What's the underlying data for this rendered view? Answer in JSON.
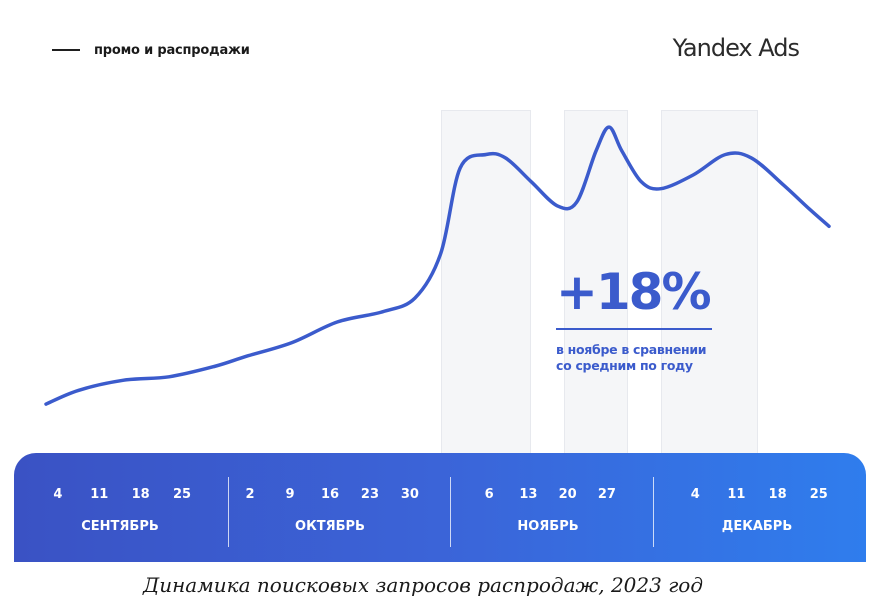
{
  "legend": {
    "label": "промо и распродажи"
  },
  "brand": {
    "text": "Yandex Ads"
  },
  "callout": {
    "value": "+18%",
    "line1": "в ноябре в сравнении",
    "line2": "со средним по году"
  },
  "caption": "Динамика поисковых запросов распродаж, 2023 год",
  "colors": {
    "line": "#3b5bcc",
    "band_start": "#3a52c4",
    "band_end": "#2f7ded",
    "highlight": "#f5f6f8"
  },
  "chart_data": {
    "type": "line",
    "title": "",
    "xlabel": "",
    "ylabel": "",
    "months": [
      {
        "name": "СЕНТЯБРЬ",
        "days": [
          "4",
          "11",
          "18",
          "25"
        ]
      },
      {
        "name": "ОКТЯБРЬ",
        "days": [
          "2",
          "9",
          "16",
          "23",
          "30"
        ]
      },
      {
        "name": "НОЯБРЬ",
        "days": [
          "6",
          "13",
          "20",
          "27"
        ]
      },
      {
        "name": "ДЕКАБРЬ",
        "days": [
          "4",
          "11",
          "18",
          "25"
        ]
      }
    ],
    "x_start": "2023-09-01",
    "x_end": "2023-12-31",
    "ylim": [
      0,
      100
    ],
    "series": [
      {
        "values": [
          {
            "x": "2023-09-01",
            "y": 14
          },
          {
            "x": "2023-09-06",
            "y": 18
          },
          {
            "x": "2023-09-13",
            "y": 21
          },
          {
            "x": "2023-09-20",
            "y": 22
          },
          {
            "x": "2023-09-27",
            "y": 25
          },
          {
            "x": "2023-10-02",
            "y": 28
          },
          {
            "x": "2023-10-09",
            "y": 32
          },
          {
            "x": "2023-10-16",
            "y": 38
          },
          {
            "x": "2023-10-23",
            "y": 41
          },
          {
            "x": "2023-10-28",
            "y": 45
          },
          {
            "x": "2023-11-01",
            "y": 58
          },
          {
            "x": "2023-11-04",
            "y": 83
          },
          {
            "x": "2023-11-08",
            "y": 87
          },
          {
            "x": "2023-11-11",
            "y": 86
          },
          {
            "x": "2023-11-15",
            "y": 79
          },
          {
            "x": "2023-11-19",
            "y": 72
          },
          {
            "x": "2023-11-22",
            "y": 73
          },
          {
            "x": "2023-11-25",
            "y": 88
          },
          {
            "x": "2023-11-27",
            "y": 95
          },
          {
            "x": "2023-11-29",
            "y": 88
          },
          {
            "x": "2023-12-02",
            "y": 79
          },
          {
            "x": "2023-12-05",
            "y": 77
          },
          {
            "x": "2023-12-10",
            "y": 81
          },
          {
            "x": "2023-12-15",
            "y": 87
          },
          {
            "x": "2023-12-19",
            "y": 86
          },
          {
            "x": "2023-12-24",
            "y": 78
          },
          {
            "x": "2023-12-28",
            "y": 71
          },
          {
            "x": "2023-12-31",
            "y": 66
          }
        ]
      }
    ],
    "promo_periods": [
      {
        "start": "2023-11-01",
        "end": "2023-11-15"
      },
      {
        "start": "2023-11-20",
        "end": "2023-11-30"
      },
      {
        "start": "2023-12-05",
        "end": "2023-12-20"
      }
    ],
    "grid": false,
    "legend_position": "top-left"
  }
}
